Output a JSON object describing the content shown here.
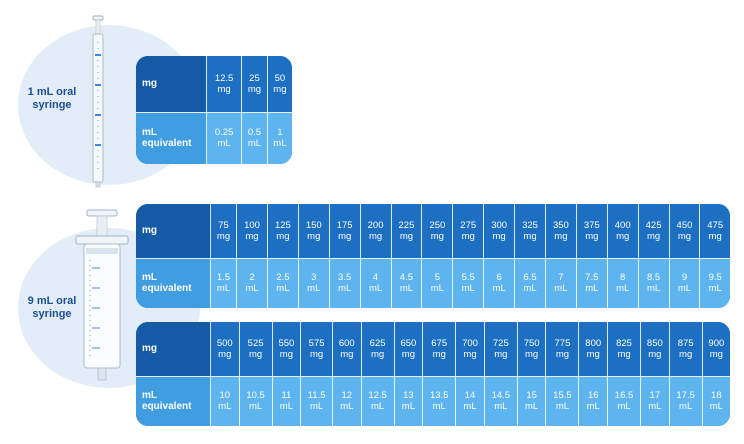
{
  "colors": {
    "header_dark": "#145aa4",
    "mg_row": "#1d6fc2",
    "ml_row": "#5db4ee",
    "circle_bg": "#e3edf8",
    "label_text": "#1d4f8f"
  },
  "syringe_1ml": {
    "label": "1 mL oral\nsyringe",
    "icon": "oral-syringe-1ml-icon"
  },
  "syringe_9ml": {
    "label": "9 mL oral\nsyringe",
    "icon": "oral-syringe-9ml-icon"
  },
  "row_labels": {
    "mg": "mg",
    "ml": "mL\nequivalent"
  },
  "table_1ml": {
    "mg": [
      "12.5\nmg",
      "25\nmg",
      "50\nmg"
    ],
    "ml": [
      "0.25\nmL",
      "0.5\nmL",
      "1\nmL"
    ]
  },
  "table_9ml_a": {
    "mg": [
      "75\nmg",
      "100\nmg",
      "125\nmg",
      "150\nmg",
      "175\nmg",
      "200\nmg",
      "225\nmg",
      "250\nmg",
      "275\nmg",
      "300\nmg",
      "325\nmg",
      "350\nmg",
      "375\nmg",
      "400\nmg",
      "425\nmg",
      "450\nmg",
      "475\nmg"
    ],
    "ml": [
      "1.5\nmL",
      "2\nmL",
      "2.5\nmL",
      "3\nmL",
      "3.5\nmL",
      "4\nmL",
      "4.5\nmL",
      "5\nmL",
      "5.5\nmL",
      "6\nmL",
      "6.5\nmL",
      "7\nmL",
      "7.5\nmL",
      "8\nmL",
      "8.5\nmL",
      "9\nmL",
      "9.5\nmL"
    ]
  },
  "table_9ml_b": {
    "mg": [
      "500\nmg",
      "525\nmg",
      "550\nmg",
      "575\nmg",
      "600\nmg",
      "625\nmg",
      "650\nmg",
      "675\nmg",
      "700\nmg",
      "725\nmg",
      "750\nmg",
      "775\nmg",
      "800\nmg",
      "825\nmg",
      "850\nmg",
      "875\nmg",
      "900\nmg"
    ],
    "ml": [
      "10\nmL",
      "10.5\nmL",
      "11\nmL",
      "11.5\nmL",
      "12\nmL",
      "12.5\nmL",
      "13\nmL",
      "13.5\nmL",
      "14\nmL",
      "14.5\nmL",
      "15\nmL",
      "15.5\nmL",
      "16\nmL",
      "16.5\nmL",
      "17\nmL",
      "17.5\nmL",
      "18\nmL"
    ]
  }
}
